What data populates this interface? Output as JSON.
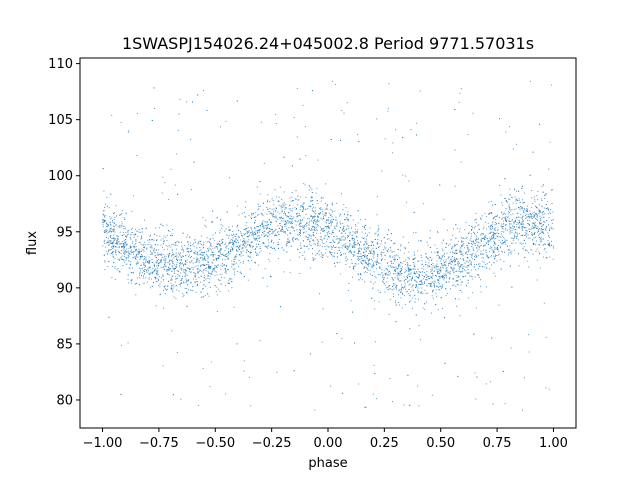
{
  "chart_data": {
    "type": "scatter",
    "title": "1SWASPJ154026.24+045002.8 Period 9771.57031s",
    "xlabel": "phase",
    "ylabel": "flux",
    "xlim": [
      -1.1,
      1.1
    ],
    "ylim": [
      77.5,
      110.5
    ],
    "x_ticks": [
      -1.0,
      -0.75,
      -0.5,
      -0.25,
      0.0,
      0.25,
      0.5,
      0.75,
      1.0
    ],
    "x_tick_labels": [
      "−1.00",
      "−0.75",
      "−0.50",
      "−0.25",
      "0.00",
      "0.25",
      "0.50",
      "0.75",
      "1.00"
    ],
    "y_ticks": [
      80,
      85,
      90,
      95,
      100,
      105,
      110
    ],
    "y_tick_labels": [
      "80",
      "85",
      "90",
      "95",
      "100",
      "105",
      "110"
    ],
    "grid": false,
    "legend": "none",
    "point_color": "#1f77b4",
    "series": [
      {
        "x_range": [
          -1.0,
          1.0
        ],
        "trend": {
          "phase": [
            -1.0,
            -0.9,
            -0.8,
            -0.7,
            -0.6,
            -0.5,
            -0.4,
            -0.3,
            -0.2,
            -0.15,
            -0.1,
            0.0,
            0.1,
            0.2,
            0.3,
            0.4,
            0.5,
            0.6,
            0.7,
            0.8,
            0.85,
            0.9,
            1.0
          ],
          "flux": [
            94.9,
            93.7,
            92.6,
            92.0,
            92.0,
            92.4,
            93.6,
            95.0,
            95.9,
            96.0,
            95.8,
            95.2,
            93.9,
            92.6,
            91.6,
            91.1,
            91.4,
            92.6,
            94.0,
            95.5,
            95.8,
            95.7,
            94.9
          ]
        },
        "core_spread": 2.2,
        "outlier_range": [
          79,
          108.5
        ]
      }
    ]
  }
}
